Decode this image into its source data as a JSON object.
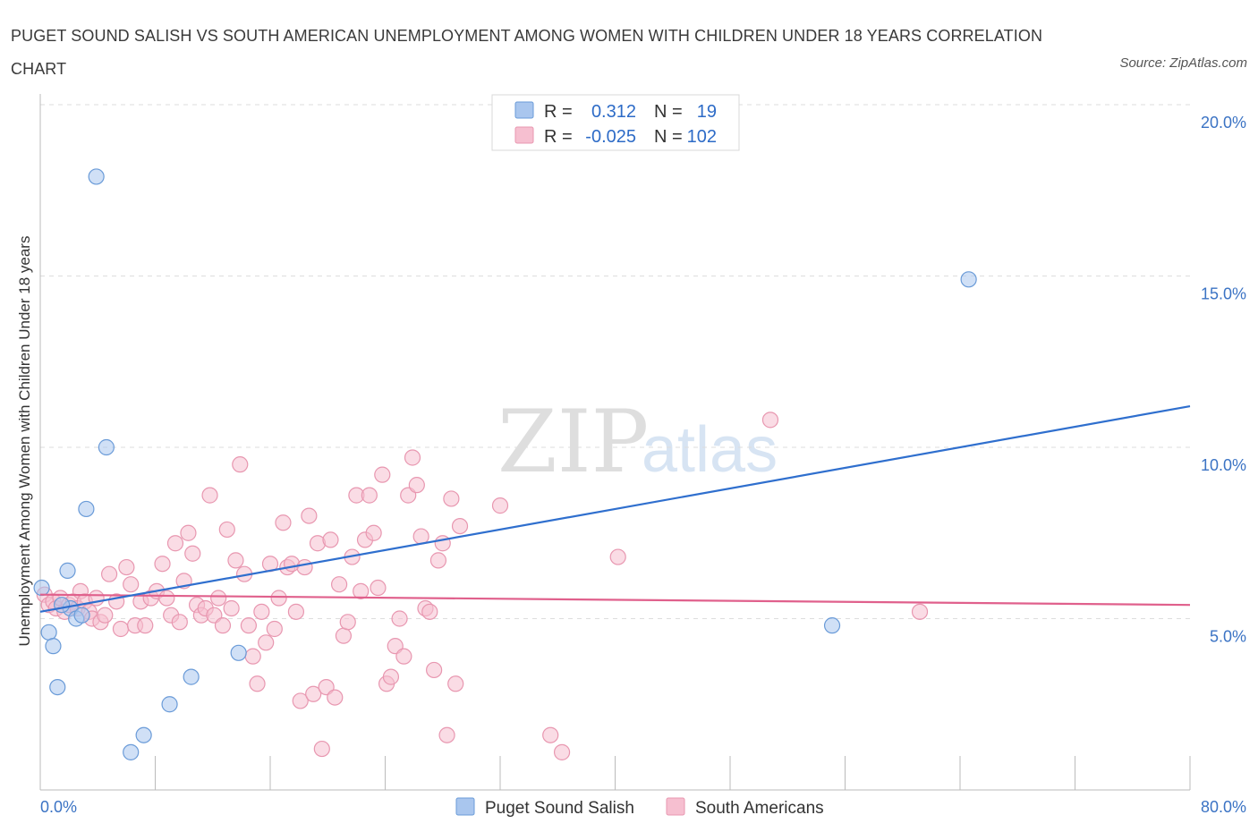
{
  "title": "PUGET SOUND SALISH VS SOUTH AMERICAN UNEMPLOYMENT AMONG WOMEN WITH CHILDREN UNDER 18 YEARS CORRELATION CHART",
  "source": "Source: ZipAtlas.com",
  "watermark": {
    "zip": "ZIP",
    "atlas": "atlas"
  },
  "colors": {
    "blue_fill": "#a9c6ee",
    "blue_stroke": "#6a9bd8",
    "blue_line": "#2f6fce",
    "pink_fill": "#f6bfd0",
    "pink_stroke": "#e897b0",
    "pink_line": "#e0608c",
    "tick": "#3b73c4",
    "grid": "#dddddd"
  },
  "legend": {
    "rows": [
      {
        "r_label": "R =",
        "r_value": "0.312",
        "n_label": "N =",
        "n_value": "19",
        "series": "blue"
      },
      {
        "r_label": "R =",
        "r_value": "-0.025",
        "n_label": "N =",
        "n_value": "102",
        "series": "pink"
      }
    ]
  },
  "chart_data": {
    "type": "scatter",
    "title": "PUGET SOUND SALISH VS SOUTH AMERICAN UNEMPLOYMENT AMONG WOMEN WITH CHILDREN UNDER 18 YEARS CORRELATION CHART",
    "xlabel": "",
    "ylabel": "Unemployment Among Women with Children Under 18 years",
    "xlim": [
      0,
      80
    ],
    "ylim": [
      0,
      20
    ],
    "x_tick_labels": [
      "0.0%",
      "80.0%"
    ],
    "y_ticks": [
      5,
      10,
      15,
      20
    ],
    "y_tick_labels": [
      "5.0%",
      "10.0%",
      "15.0%",
      "20.0%"
    ],
    "legend_position": "top-center",
    "series": [
      {
        "name": "Puget Sound Salish",
        "color_key": "blue",
        "trend": {
          "x": [
            0,
            80
          ],
          "y": [
            5.2,
            11.2
          ]
        },
        "points": [
          [
            0.1,
            5.9
          ],
          [
            0.6,
            4.6
          ],
          [
            0.9,
            4.2
          ],
          [
            1.2,
            3.0
          ],
          [
            1.9,
            6.4
          ],
          [
            2.1,
            5.3
          ],
          [
            2.5,
            5.0
          ],
          [
            2.9,
            5.1
          ],
          [
            3.2,
            8.2
          ],
          [
            3.9,
            17.9
          ],
          [
            4.6,
            10.0
          ],
          [
            6.3,
            1.1
          ],
          [
            7.2,
            1.6
          ],
          [
            9.0,
            2.5
          ],
          [
            10.5,
            3.3
          ],
          [
            13.8,
            4.0
          ],
          [
            55.1,
            4.8
          ],
          [
            64.6,
            14.9
          ],
          [
            1.5,
            5.4
          ]
        ]
      },
      {
        "name": "South Americans",
        "color_key": "pink",
        "trend": {
          "x": [
            0,
            80
          ],
          "y": [
            5.7,
            5.4
          ]
        },
        "points": [
          [
            0.3,
            5.7
          ],
          [
            0.6,
            5.4
          ],
          [
            0.9,
            5.5
          ],
          [
            1.1,
            5.3
          ],
          [
            1.4,
            5.6
          ],
          [
            1.7,
            5.2
          ],
          [
            2.0,
            5.4
          ],
          [
            2.3,
            5.5
          ],
          [
            2.6,
            5.3
          ],
          [
            2.8,
            5.8
          ],
          [
            3.1,
            5.5
          ],
          [
            3.4,
            5.2
          ],
          [
            3.6,
            5.0
          ],
          [
            3.9,
            5.6
          ],
          [
            4.2,
            4.9
          ],
          [
            4.5,
            5.1
          ],
          [
            4.8,
            6.3
          ],
          [
            5.3,
            5.5
          ],
          [
            5.6,
            4.7
          ],
          [
            6.0,
            6.5
          ],
          [
            6.3,
            6.0
          ],
          [
            6.6,
            4.8
          ],
          [
            7.0,
            5.5
          ],
          [
            7.3,
            4.8
          ],
          [
            7.7,
            5.6
          ],
          [
            8.1,
            5.8
          ],
          [
            8.5,
            6.6
          ],
          [
            8.8,
            5.6
          ],
          [
            9.1,
            5.1
          ],
          [
            9.4,
            7.2
          ],
          [
            9.7,
            4.9
          ],
          [
            10.0,
            6.1
          ],
          [
            10.3,
            7.5
          ],
          [
            10.6,
            6.9
          ],
          [
            10.9,
            5.4
          ],
          [
            11.2,
            5.1
          ],
          [
            11.5,
            5.3
          ],
          [
            11.8,
            8.6
          ],
          [
            12.1,
            5.1
          ],
          [
            12.4,
            5.6
          ],
          [
            12.7,
            4.8
          ],
          [
            13.0,
            7.6
          ],
          [
            13.3,
            5.3
          ],
          [
            13.6,
            6.7
          ],
          [
            13.9,
            9.5
          ],
          [
            14.2,
            6.3
          ],
          [
            14.5,
            4.8
          ],
          [
            14.8,
            3.9
          ],
          [
            15.1,
            3.1
          ],
          [
            15.4,
            5.2
          ],
          [
            15.7,
            4.3
          ],
          [
            16.0,
            6.6
          ],
          [
            16.3,
            4.7
          ],
          [
            16.6,
            5.6
          ],
          [
            16.9,
            7.8
          ],
          [
            17.2,
            6.5
          ],
          [
            17.5,
            6.6
          ],
          [
            17.8,
            5.2
          ],
          [
            18.1,
            2.6
          ],
          [
            18.4,
            6.5
          ],
          [
            18.7,
            8.0
          ],
          [
            19.0,
            2.8
          ],
          [
            19.3,
            7.2
          ],
          [
            19.6,
            1.2
          ],
          [
            19.9,
            3.0
          ],
          [
            20.2,
            7.3
          ],
          [
            20.5,
            2.7
          ],
          [
            20.8,
            6.0
          ],
          [
            21.1,
            4.5
          ],
          [
            21.4,
            4.9
          ],
          [
            21.7,
            6.8
          ],
          [
            22.0,
            8.6
          ],
          [
            22.3,
            5.8
          ],
          [
            22.6,
            7.3
          ],
          [
            22.9,
            8.6
          ],
          [
            23.2,
            7.5
          ],
          [
            23.5,
            5.9
          ],
          [
            23.8,
            9.2
          ],
          [
            24.1,
            3.1
          ],
          [
            24.4,
            3.3
          ],
          [
            24.7,
            4.2
          ],
          [
            25.0,
            5.0
          ],
          [
            25.3,
            3.9
          ],
          [
            25.6,
            8.6
          ],
          [
            25.9,
            9.7
          ],
          [
            26.2,
            8.9
          ],
          [
            26.5,
            7.4
          ],
          [
            26.8,
            5.3
          ],
          [
            27.1,
            5.2
          ],
          [
            27.4,
            3.5
          ],
          [
            27.7,
            6.7
          ],
          [
            28.0,
            7.2
          ],
          [
            28.3,
            1.6
          ],
          [
            28.6,
            8.5
          ],
          [
            28.9,
            3.1
          ],
          [
            29.2,
            7.7
          ],
          [
            32.0,
            8.3
          ],
          [
            35.5,
            1.6
          ],
          [
            36.3,
            1.1
          ],
          [
            40.2,
            6.8
          ],
          [
            50.8,
            10.8
          ],
          [
            61.2,
            5.2
          ]
        ]
      }
    ]
  },
  "bottom_legend": [
    {
      "label": "Puget Sound Salish",
      "color_key": "blue"
    },
    {
      "label": "South Americans",
      "color_key": "pink"
    }
  ]
}
